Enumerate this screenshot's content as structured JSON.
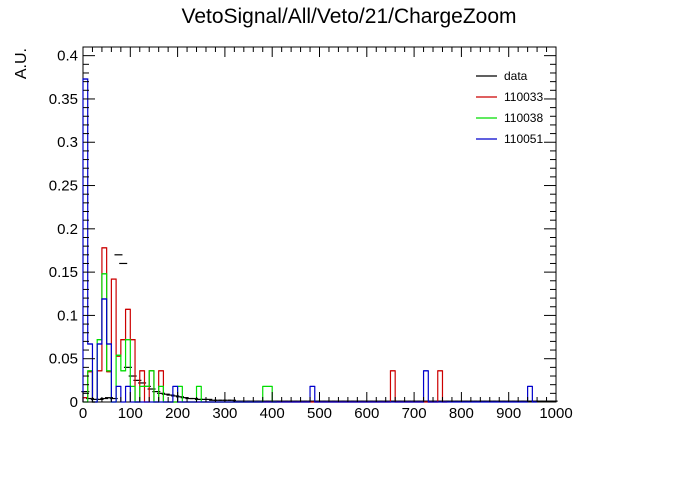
{
  "chart_data": {
    "type": "bar",
    "title": "VetoSignal/All/Veto/21/ChargeZoom",
    "xlabel": "",
    "ylabel": "A.U.",
    "xlim": [
      0,
      1000
    ],
    "ylim": [
      0,
      0.41
    ],
    "bin_width": 10,
    "x_ticks": [
      "0",
      "100",
      "200",
      "300",
      "400",
      "500",
      "600",
      "700",
      "800",
      "900",
      "1000"
    ],
    "y_ticks": [
      "0",
      "0.05",
      "0.1",
      "0.15",
      "0.2",
      "0.25",
      "0.3",
      "0.35",
      "0.4"
    ],
    "legend_position": "top-right",
    "series": [
      {
        "name": "data",
        "color": "#000000",
        "style": "markers",
        "points": [
          [
            5,
            0.012
          ],
          [
            15,
            0.004
          ],
          [
            25,
            0.003
          ],
          [
            35,
            0.003
          ],
          [
            45,
            0.004
          ],
          [
            55,
            0.005
          ],
          [
            65,
            0.004
          ],
          [
            75,
            0.17
          ],
          [
            85,
            0.16
          ],
          [
            95,
            0.04
          ],
          [
            105,
            0.03
          ],
          [
            115,
            0.025
          ],
          [
            125,
            0.022
          ],
          [
            135,
            0.018
          ],
          [
            145,
            0.015
          ],
          [
            155,
            0.012
          ],
          [
            165,
            0.01
          ],
          [
            175,
            0.009
          ],
          [
            185,
            0.008
          ],
          [
            195,
            0.007
          ],
          [
            205,
            0.006
          ],
          [
            215,
            0.005
          ],
          [
            225,
            0.004
          ],
          [
            235,
            0.004
          ],
          [
            245,
            0.003
          ],
          [
            255,
            0.003
          ],
          [
            265,
            0.003
          ],
          [
            275,
            0.002
          ],
          [
            285,
            0.002
          ],
          [
            295,
            0.002
          ],
          [
            305,
            0.002
          ],
          [
            315,
            0.002
          ],
          [
            325,
            0.001
          ],
          [
            335,
            0.001
          ],
          [
            345,
            0.001
          ],
          [
            355,
            0.001
          ],
          [
            365,
            0.001
          ],
          [
            375,
            0.001
          ],
          [
            385,
            0.001
          ],
          [
            395,
            0.001
          ],
          [
            405,
            0.001
          ],
          [
            415,
            0.001
          ],
          [
            425,
            0.001
          ],
          [
            435,
            0.001
          ],
          [
            445,
            0.001
          ],
          [
            455,
            0.001
          ],
          [
            465,
            0.001
          ],
          [
            475,
            0.001
          ],
          [
            485,
            0.001
          ],
          [
            495,
            0.001
          ],
          [
            505,
            0.001
          ],
          [
            515,
            0.001
          ],
          [
            525,
            0.001
          ],
          [
            535,
            0.001
          ],
          [
            545,
            0.001
          ],
          [
            555,
            0.001
          ],
          [
            565,
            0.001
          ],
          [
            575,
            0.001
          ],
          [
            585,
            0.001
          ],
          [
            595,
            0.001
          ],
          [
            605,
            0.001
          ],
          [
            615,
            0.001
          ],
          [
            625,
            0.001
          ],
          [
            635,
            0.001
          ],
          [
            645,
            0.001
          ],
          [
            655,
            0.001
          ],
          [
            665,
            0.001
          ],
          [
            675,
            0.001
          ],
          [
            685,
            0.001
          ],
          [
            695,
            0.001
          ],
          [
            705,
            0.001
          ],
          [
            715,
            0.001
          ],
          [
            725,
            0.001
          ],
          [
            735,
            0.001
          ],
          [
            745,
            0.001
          ],
          [
            755,
            0.001
          ],
          [
            765,
            0.001
          ],
          [
            775,
            0.001
          ],
          [
            785,
            0.001
          ],
          [
            795,
            0.001
          ],
          [
            805,
            0.001
          ],
          [
            815,
            0.001
          ],
          [
            825,
            0.001
          ],
          [
            835,
            0.001
          ],
          [
            845,
            0.001
          ],
          [
            855,
            0.001
          ],
          [
            865,
            0.001
          ],
          [
            875,
            0.001
          ],
          [
            885,
            0.001
          ],
          [
            895,
            0.001
          ],
          [
            905,
            0.001
          ],
          [
            915,
            0.001
          ],
          [
            925,
            0.001
          ],
          [
            935,
            0.001
          ],
          [
            945,
            0.001
          ],
          [
            955,
            0.001
          ],
          [
            965,
            0.001
          ],
          [
            975,
            0.001
          ],
          [
            985,
            0.001
          ],
          [
            995,
            0.001
          ]
        ]
      },
      {
        "name": "110033",
        "color": "#cc0000",
        "style": "histogram",
        "bins": [
          [
            0,
            0.005
          ],
          [
            10,
            0.035
          ],
          [
            20,
            0.0
          ],
          [
            30,
            0.036
          ],
          [
            40,
            0.178
          ],
          [
            50,
            0.035
          ],
          [
            60,
            0.142
          ],
          [
            70,
            0.053
          ],
          [
            80,
            0.072
          ],
          [
            90,
            0.107
          ],
          [
            100,
            0.072
          ],
          [
            110,
            0.0
          ],
          [
            120,
            0.036
          ],
          [
            130,
            0.0
          ],
          [
            140,
            0.036
          ],
          [
            150,
            0.0
          ],
          [
            160,
            0.036
          ],
          [
            170,
            0.0
          ],
          [
            650,
            0.036
          ],
          [
            660,
            0.0
          ],
          [
            750,
            0.036
          ],
          [
            760,
            0.0
          ]
        ]
      },
      {
        "name": "110038",
        "color": "#00dd00",
        "style": "histogram",
        "bins": [
          [
            0,
            0.0
          ],
          [
            10,
            0.036
          ],
          [
            20,
            0.0
          ],
          [
            30,
            0.072
          ],
          [
            40,
            0.148
          ],
          [
            50,
            0.036
          ],
          [
            60,
            0.0
          ],
          [
            70,
            0.054
          ],
          [
            80,
            0.036
          ],
          [
            90,
            0.072
          ],
          [
            100,
            0.018
          ],
          [
            110,
            0.0
          ],
          [
            120,
            0.018
          ],
          [
            130,
            0.018
          ],
          [
            140,
            0.036
          ],
          [
            150,
            0.0
          ],
          [
            160,
            0.018
          ],
          [
            170,
            0.0
          ],
          [
            200,
            0.018
          ],
          [
            210,
            0.0
          ],
          [
            240,
            0.018
          ],
          [
            250,
            0.0
          ],
          [
            380,
            0.018
          ],
          [
            390,
            0.018
          ],
          [
            400,
            0.0
          ]
        ]
      },
      {
        "name": "110051",
        "color": "#0000cc",
        "style": "histogram",
        "bins": [
          [
            0,
            0.373
          ],
          [
            10,
            0.067
          ],
          [
            20,
            0.0
          ],
          [
            30,
            0.067
          ],
          [
            40,
            0.119
          ],
          [
            50,
            0.067
          ],
          [
            60,
            0.0
          ],
          [
            70,
            0.018
          ],
          [
            80,
            0.0
          ],
          [
            90,
            0.018
          ],
          [
            100,
            0.0
          ],
          [
            190,
            0.018
          ],
          [
            200,
            0.0
          ],
          [
            480,
            0.018
          ],
          [
            490,
            0.0
          ],
          [
            720,
            0.036
          ],
          [
            730,
            0.0
          ],
          [
            940,
            0.018
          ],
          [
            950,
            0.0
          ]
        ]
      }
    ]
  }
}
